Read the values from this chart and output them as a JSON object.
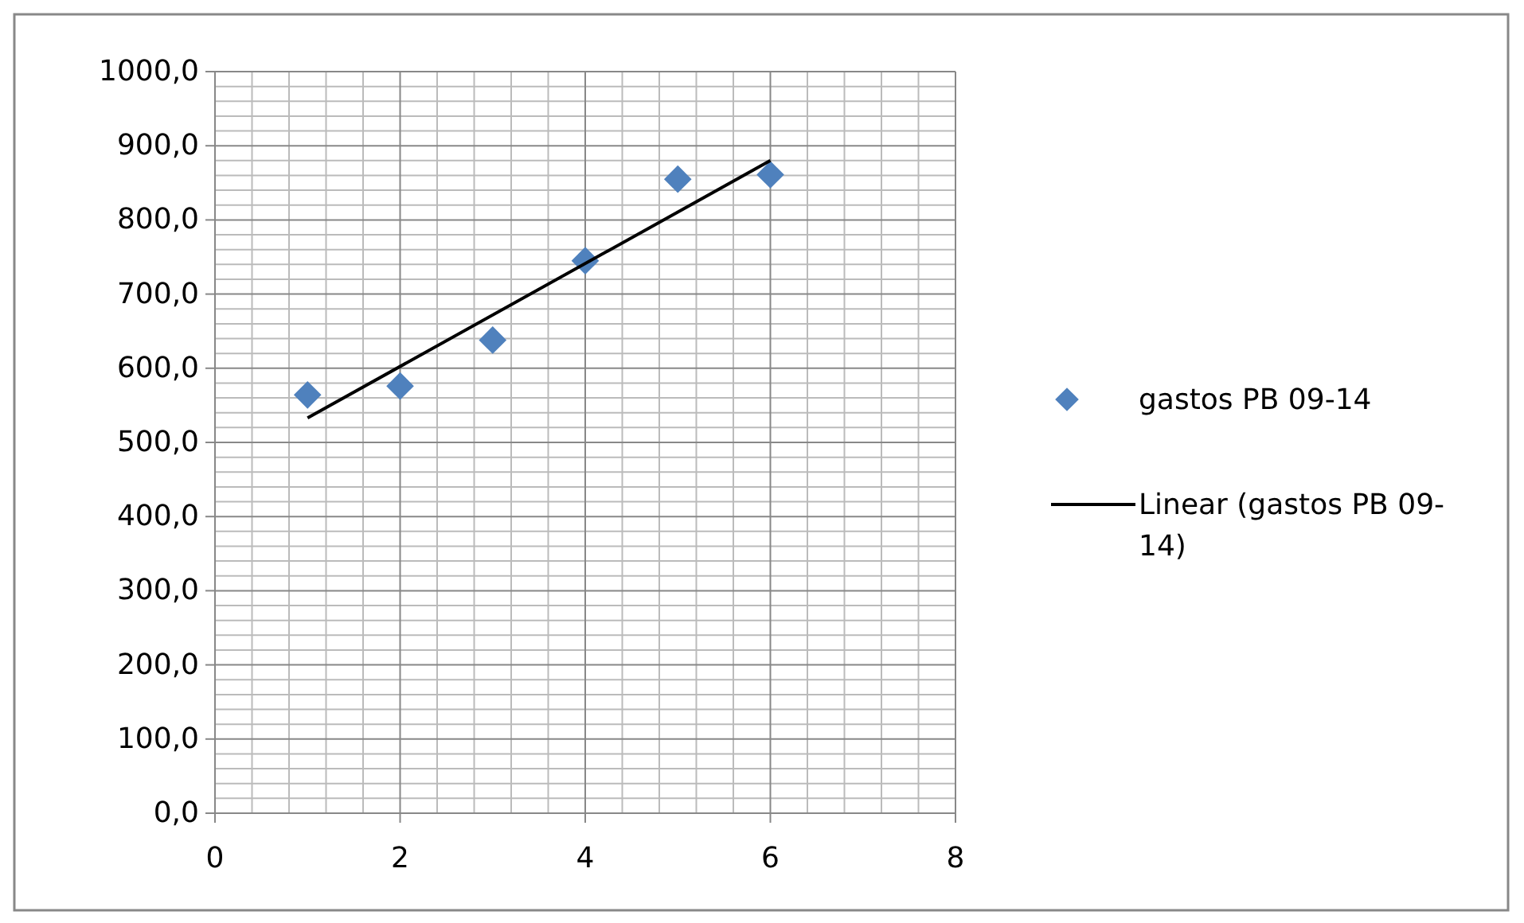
{
  "chart_data": {
    "type": "scatter",
    "xlim": [
      0,
      8
    ],
    "xticks": [
      0,
      2,
      4,
      6,
      8
    ],
    "ylim": [
      0,
      1000
    ],
    "yticks": [
      {
        "value": 0,
        "label": "0,0"
      },
      {
        "value": 100,
        "label": "100,0"
      },
      {
        "value": 200,
        "label": "200,0"
      },
      {
        "value": 300,
        "label": "300,0"
      },
      {
        "value": 400,
        "label": "400,0"
      },
      {
        "value": 500,
        "label": "500,0"
      },
      {
        "value": 600,
        "label": "600,0"
      },
      {
        "value": 700,
        "label": "700,0"
      },
      {
        "value": 800,
        "label": "800,0"
      },
      {
        "value": 900,
        "label": "900,0"
      },
      {
        "value": 1000,
        "label": "1000,0"
      }
    ],
    "grid": true,
    "legend": "right",
    "marker": "diamond",
    "series": [
      {
        "name": "gastos PB 09-14",
        "color": "#4f81bd",
        "x": [
          1,
          2,
          3,
          4,
          5,
          6
        ],
        "values": [
          564,
          576,
          638,
          745,
          855,
          861
        ]
      },
      {
        "type": "line",
        "name": "Linear (gastos PB 09-14)",
        "color": "#000000",
        "x": [
          1,
          6
        ],
        "values": [
          533,
          880
        ],
        "marker": "none",
        "line_style": "solid"
      }
    ]
  }
}
